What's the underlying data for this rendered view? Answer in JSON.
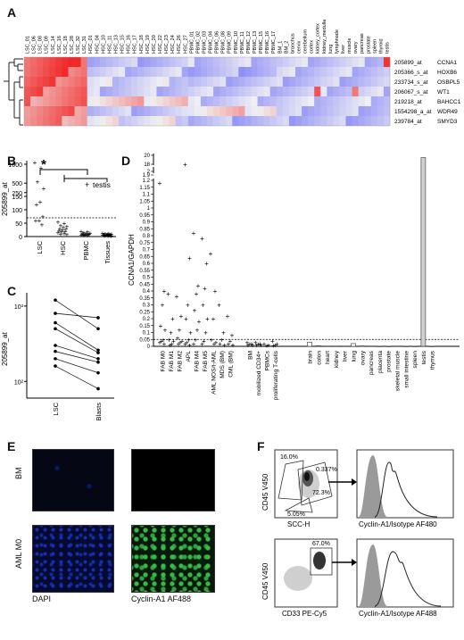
{
  "panels": {
    "a": "A",
    "b": "B",
    "c": "C",
    "d": "D",
    "e": "E",
    "f": "F"
  },
  "heatmap": {
    "columns": [
      "LSC_01",
      "LSC_06",
      "LSC_08",
      "LSC_09",
      "LSC_14",
      "LSC_16",
      "LSC_18",
      "LSC_28",
      "LSC_32",
      "LSC_31",
      "HSC_01",
      "HSC_04",
      "HSC_10",
      "HSC_11",
      "HSC_13",
      "HSC_15",
      "HSC_16",
      "HSC_17",
      "HSC_18",
      "HSC_19",
      "HSC_20",
      "HSC_22",
      "HSC_23",
      "HSC_24",
      "HSC_26",
      "HSC_27",
      "PBMC_01",
      "PBMC_02",
      "PBMC_03",
      "PBMC_04",
      "PBMC_06",
      "PBMC_08",
      "PBMC_09",
      "PBMC_10",
      "PBMC_11",
      "PBMC_12",
      "PBMC_13",
      "PBMC_15",
      "PBMC_16",
      "PBMC_17",
      "BM_1",
      "BM_2",
      "bronchus",
      "cervix",
      "cerebellum",
      "cortex",
      "kidney_cortex",
      "kidney_medulla",
      "lung",
      "lymphnode",
      "liver",
      "muscle",
      "ovary",
      "pancreas",
      "prostate",
      "spleen",
      "thyroid",
      "testis"
    ],
    "probes": [
      "205899_at",
      "205366_s_at",
      "233734_s_at",
      "206067_s_at",
      "219218_at",
      "1554298_a_at",
      "239784_at"
    ],
    "genes": [
      "CCNA1",
      "HOXB6",
      "OSBPL5",
      "WT1",
      "BAHCC1",
      "WDR49",
      "SMYD3"
    ]
  },
  "chart_data": [
    {
      "panel": "B",
      "type": "scatter",
      "ylabel": "205899_at",
      "categories": [
        "LSC",
        "HSC",
        "PBMC",
        "Tissues"
      ],
      "yticks": [
        "0",
        "50",
        "100",
        "150",
        "250",
        "500",
        "1000"
      ],
      "significance": "*",
      "legend": "testis",
      "points": {
        "LSC": [
          1050,
          900,
          540,
          360,
          130,
          120,
          75,
          60,
          60,
          45
        ],
        "HSC": [
          55,
          50,
          42,
          38,
          35,
          30,
          28,
          25,
          22,
          20,
          18,
          15,
          12,
          10,
          8
        ],
        "PBMC": [
          20,
          18,
          15,
          14,
          12,
          11,
          10,
          9,
          8,
          8,
          7,
          6,
          5,
          5
        ],
        "Tissues": [
          14,
          12,
          11,
          10,
          10,
          9,
          8,
          8,
          7,
          7,
          6,
          6,
          5,
          5,
          4,
          4,
          3,
          3
        ]
      },
      "threshold": 70
    },
    {
      "panel": "C",
      "type": "line",
      "ylabel": "205899_at",
      "scale": "log",
      "yticks": [
        "10²",
        "10³"
      ],
      "categories": [
        "LSC",
        "Blasts"
      ],
      "pairs": [
        [
          1200,
          500
        ],
        [
          800,
          700
        ],
        [
          600,
          260
        ],
        [
          500,
          240
        ],
        [
          300,
          200
        ],
        [
          250,
          180
        ],
        [
          200,
          130
        ],
        [
          160,
          80
        ]
      ]
    },
    {
      "panel": "D",
      "type": "scatter",
      "ylabel": "CCNA1/GAPDH",
      "yticks": [
        "0",
        "0.05",
        "0.1",
        "0.15",
        "0.2",
        "0.25",
        "0.3",
        "0.35",
        "0.4",
        "0.45",
        "0.5",
        "0.55",
        "0.6",
        "0.65",
        "0.7",
        "0.75",
        "0.8",
        "0.85",
        "0.9",
        "0.95",
        "1",
        "1.05",
        "1.1",
        "1.15",
        "1.2",
        "1.9",
        "2",
        "18",
        "20"
      ],
      "groups": [
        "FAB M0",
        "FAB M1",
        "FAB M2",
        "APL",
        "FAB M4",
        "FAB M5",
        "AML NOS/t-AML",
        "MDS (BM)",
        "CML (BM)",
        "BM",
        "mobilized CD34+",
        "PBMCs",
        "proliferating T-cells",
        "brain",
        "colon",
        "heart",
        "kidney",
        "liver",
        "lung",
        "ovary",
        "pancreas",
        "placenta",
        "prostate",
        "skeletal muscle",
        "small intestine",
        "spleen",
        "testis",
        "thymus"
      ],
      "leukemia_points": [
        [
          1.18,
          0.4,
          0.3,
          0.15,
          0.12,
          0.05,
          0.04,
          0.03,
          0.02
        ],
        [
          0.38,
          0.2,
          0.1,
          0.05,
          0.04,
          0.02,
          0.01
        ],
        [
          0.36,
          0.22,
          0.12,
          0.06,
          0.04,
          0.03,
          0.02
        ],
        [
          18.0,
          0.64,
          0.3,
          0.2,
          0.1,
          0.05,
          0.03,
          0.02,
          0.01
        ],
        [
          0.82,
          0.44,
          0.38,
          0.26,
          0.18,
          0.12,
          0.05,
          0.02
        ],
        [
          0.78,
          0.6,
          0.42,
          0.3,
          0.2,
          0.1,
          0.04,
          0.02
        ],
        [
          0.67,
          0.4,
          0.2,
          0.05,
          0.03,
          0.02
        ],
        [
          0.3,
          0.1,
          0.05,
          0.02,
          0.01
        ],
        [
          0.22,
          0.08,
          0.04,
          0.02,
          0.01
        ]
      ],
      "normal_points": [
        [
          0.03,
          0.02,
          0.02,
          0.01,
          0.01
        ],
        [
          0.03,
          0.02,
          0.015,
          0.01,
          0.01
        ],
        [
          0.02,
          0.01,
          0.005
        ],
        [
          0.04,
          0.02,
          0.01,
          0.005
        ]
      ],
      "tissue_values": [
        0.03,
        0.005,
        0.002,
        0.002,
        0.002,
        0.02,
        0.003,
        0.002,
        0.001,
        0.001,
        0.002,
        0.001,
        0.001,
        19.5,
        0.001
      ],
      "threshold": 0.05
    }
  ],
  "panelE": {
    "row_labels": [
      "BM",
      "AML M0"
    ],
    "col_labels": [
      "DAPI",
      "Cyclin-A1 AF488"
    ]
  },
  "panelF": {
    "top": {
      "ylabel": "CD45 V450",
      "xlabel": "SCC-H",
      "gates": [
        "16.0%",
        "0.337%",
        "72.3%",
        "5.05%"
      ],
      "hist_xlabel": "Cyclin-A1/Isotype AF480"
    },
    "bottom": {
      "ylabel": "CD45 V450",
      "xlabel": "CD33 PE-Cy5",
      "gates": [
        "67.0%"
      ],
      "hist_xlabel": "Cyclin-A1/Isotype AF488"
    }
  }
}
